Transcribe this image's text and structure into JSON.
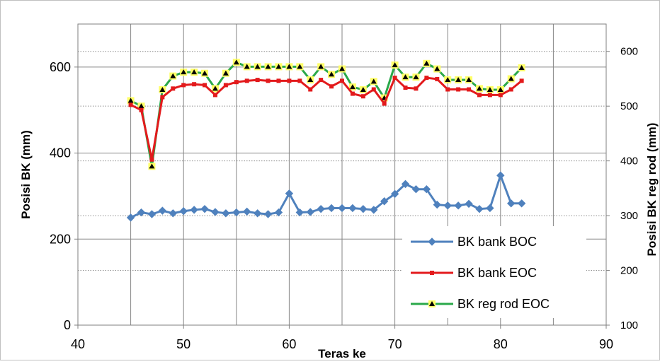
{
  "chart_data": {
    "type": "line",
    "title": "",
    "xlabel": "Teras ke",
    "ylabel": "Posisi BK (mm)",
    "y2label": "Posisi BK reg rod (mm)",
    "xlim": [
      40,
      90
    ],
    "ylim": [
      0,
      700
    ],
    "y2lim": [
      100,
      650
    ],
    "x_ticks": [
      40,
      50,
      60,
      70,
      80,
      90
    ],
    "y_ticks": [
      0,
      200,
      400,
      600
    ],
    "y2_ticks": [
      100,
      200,
      300,
      400,
      500,
      600
    ],
    "grid": true,
    "legend_position": "bottom-right",
    "x": [
      45,
      46,
      47,
      48,
      49,
      50,
      51,
      52,
      53,
      54,
      55,
      56,
      57,
      58,
      59,
      60,
      61,
      62,
      63,
      64,
      65,
      66,
      67,
      68,
      69,
      70,
      71,
      72,
      73,
      74,
      75,
      76,
      77,
      78,
      79,
      80,
      81,
      82
    ],
    "series": [
      {
        "name": "BK bank BOC",
        "axis": "left",
        "color": "#4f81bd",
        "marker": "diamond",
        "values": [
          250,
          262,
          258,
          266,
          260,
          265,
          268,
          270,
          263,
          260,
          262,
          264,
          260,
          258,
          262,
          306,
          262,
          263,
          270,
          272,
          272,
          272,
          270,
          268,
          288,
          305,
          328,
          316,
          316,
          280,
          278,
          278,
          282,
          270,
          272,
          348,
          283,
          283
        ]
      },
      {
        "name": "BK bank EOC",
        "axis": "left",
        "color": "#e31a1c",
        "marker": "square",
        "values": [
          512,
          500,
          385,
          530,
          550,
          558,
          560,
          558,
          535,
          558,
          565,
          568,
          570,
          568,
          568,
          568,
          568,
          548,
          570,
          555,
          568,
          538,
          532,
          548,
          515,
          575,
          552,
          550,
          575,
          572,
          548,
          548,
          548,
          535,
          535,
          535,
          548,
          568
        ]
      },
      {
        "name": "BK reg rod EOC",
        "axis": "right",
        "color": "#2aa84a",
        "marker": "triangle",
        "values": [
          510,
          500,
          390,
          530,
          555,
          562,
          562,
          560,
          532,
          560,
          580,
          572,
          572,
          572,
          572,
          572,
          572,
          548,
          572,
          558,
          568,
          535,
          530,
          545,
          515,
          575,
          553,
          553,
          578,
          568,
          548,
          548,
          548,
          532,
          530,
          530,
          550,
          570
        ]
      }
    ]
  }
}
